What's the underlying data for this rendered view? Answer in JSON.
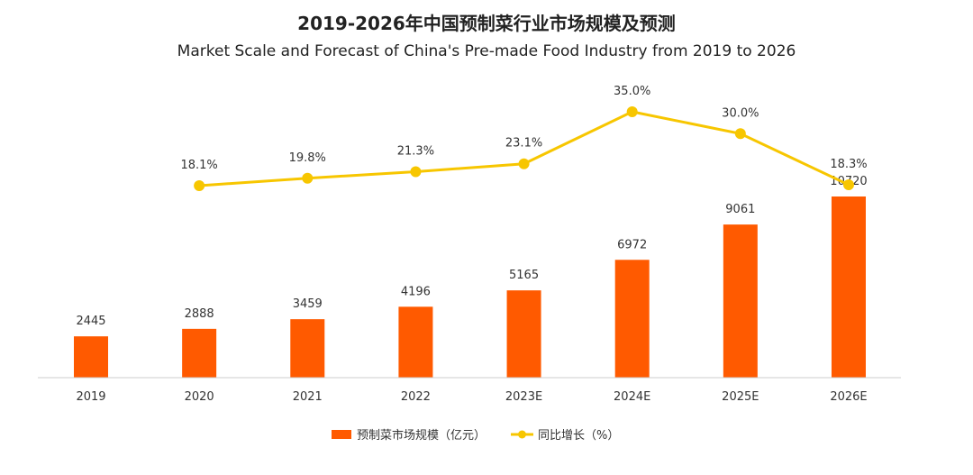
{
  "title": "2019-2026年中国预制菜行业市场规模及预测",
  "subtitle": "Market Scale and Forecast of China's Pre-made Food Industry from 2019 to 2026",
  "colors": {
    "bar": "#ff5a00",
    "line": "#f7c600",
    "axis": "#cccccc"
  },
  "chart_data": {
    "type": "bar",
    "categories": [
      "2019",
      "2020",
      "2021",
      "2022",
      "2023E",
      "2024E",
      "2025E",
      "2026E"
    ],
    "series": [
      {
        "name": "预制菜市场规模（亿元）",
        "type": "bar",
        "values": [
          2445,
          2888,
          3459,
          4196,
          5165,
          6972,
          9061,
          10720
        ]
      },
      {
        "name": "同比增长（%）",
        "type": "line",
        "values": [
          null,
          18.1,
          19.8,
          21.3,
          23.1,
          35.0,
          30.0,
          18.3
        ],
        "labels": [
          "",
          "18.1%",
          "19.8%",
          "21.3%",
          "23.1%",
          "35.0%",
          "30.0%",
          "18.3%"
        ]
      }
    ],
    "legend_position": "bottom",
    "grid": false
  }
}
